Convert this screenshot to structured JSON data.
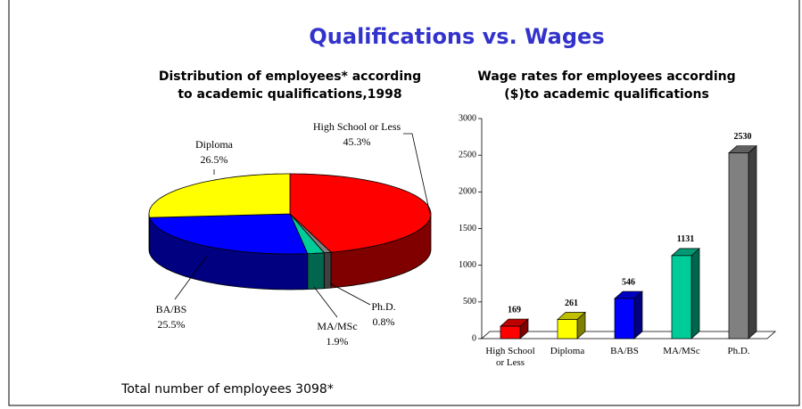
{
  "title": "Qualifications vs. Wages",
  "footnote": "Total number of employees 3098*",
  "chart_data": [
    {
      "type": "pie",
      "title": "Distribution of employees* according to academic qualifications,1998",
      "categories": [
        "High School or Less",
        "Ph.D.",
        "MA/MSc",
        "BA/BS",
        "Diploma"
      ],
      "values": [
        45.3,
        0.8,
        1.9,
        25.5,
        26.5
      ],
      "value_labels": [
        "45.3%",
        "0.8%",
        "1.9%",
        "25.5%",
        "26.5%"
      ],
      "colors": [
        "#ff0000",
        "#808080",
        "#00cc99",
        "#0000ff",
        "#ffff00"
      ]
    },
    {
      "type": "bar",
      "title": "Wage rates for employees according ($)to academic qualifications",
      "categories": [
        "High School or Less",
        "Diploma",
        "BA/BS",
        "MA/MSc",
        "Ph.D."
      ],
      "values": [
        169,
        261,
        546,
        1131,
        2530
      ],
      "colors": [
        "#ff0000",
        "#ffff00",
        "#0000ff",
        "#00cc99",
        "#808080"
      ],
      "ylim": [
        0,
        3000
      ],
      "yticks": [
        0,
        500,
        1000,
        1500,
        2000,
        2500,
        3000
      ]
    }
  ]
}
